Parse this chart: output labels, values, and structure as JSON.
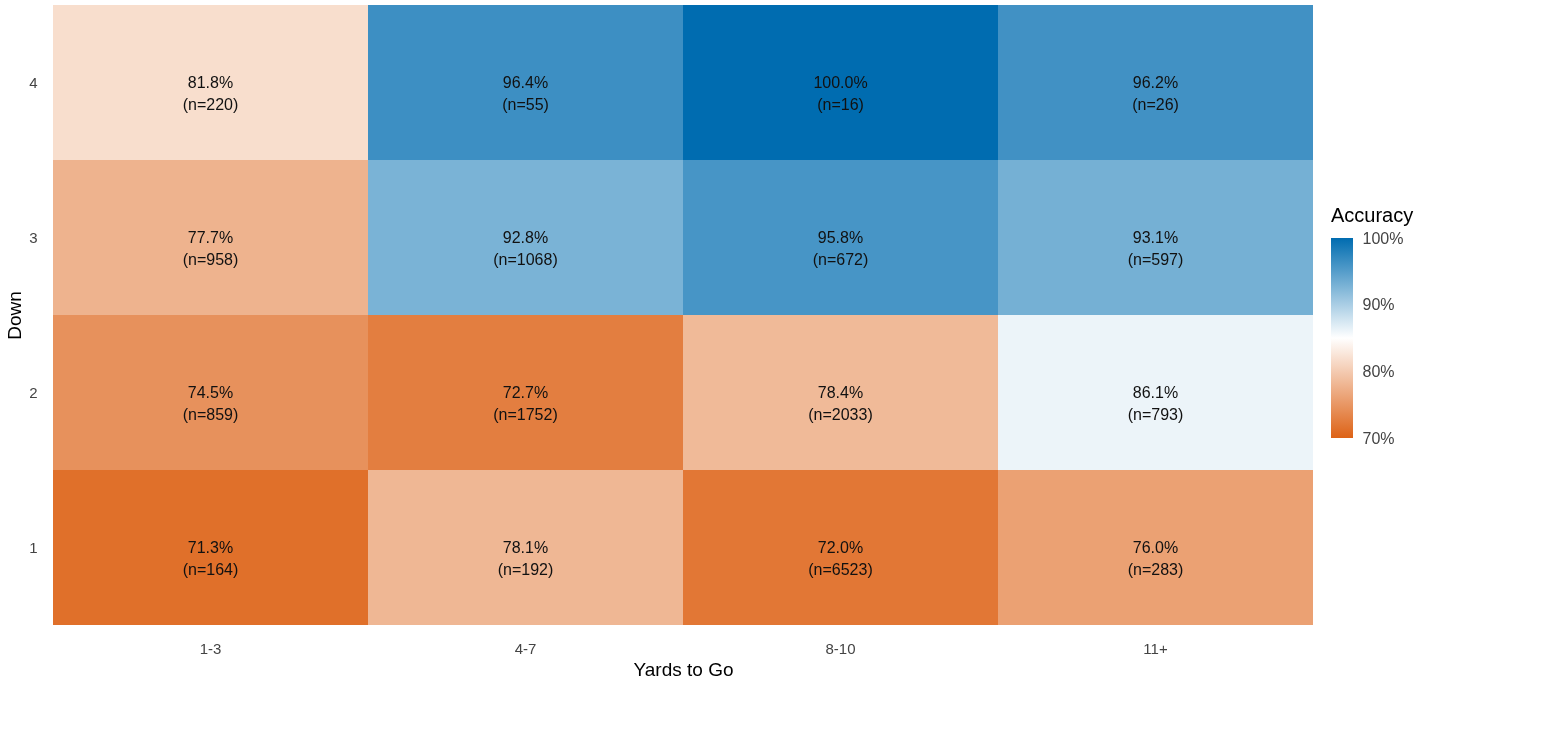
{
  "chart_data": {
    "type": "heatmap",
    "xlabel": "Yards to Go",
    "ylabel": "Down",
    "legend_title": "Accuracy",
    "categories": [
      "1-3",
      "4-7",
      "8-10",
      "11+"
    ],
    "y_categories": [
      "4",
      "3",
      "2",
      "1"
    ],
    "cells": [
      [
        81.8,
        96.4,
        100.0,
        96.2
      ],
      [
        77.7,
        92.8,
        95.8,
        93.1
      ],
      [
        74.5,
        72.7,
        78.4,
        86.1
      ],
      [
        71.3,
        78.1,
        72.0,
        76.0
      ]
    ],
    "cell_labels": [
      [
        "81.8%\n(n=220)",
        "96.4%\n(n=55)",
        "100.0%\n(n=16)",
        "96.2%\n(n=26)"
      ],
      [
        "77.7%\n(n=958)",
        "92.8%\n(n=1068)",
        "95.8%\n(n=672)",
        "93.1%\n(n=597)"
      ],
      [
        "74.5%\n(n=859)",
        "72.7%\n(n=1752)",
        "78.4%\n(n=2033)",
        "86.1%\n(n=793)"
      ],
      [
        "71.3%\n(n=164)",
        "78.1%\n(n=192)",
        "72.0%\n(n=6523)",
        "76.0%\n(n=283)"
      ]
    ],
    "clim": [
      70,
      100
    ],
    "cticks": [
      {
        "value": 70,
        "label": "70%"
      },
      {
        "value": 80,
        "label": "80%"
      },
      {
        "value": 90,
        "label": "90%"
      },
      {
        "value": 100,
        "label": "100%"
      }
    ],
    "colors": [
      "#dd6216",
      "#ffffff",
      "#006cb0"
    ],
    "grid": false
  }
}
